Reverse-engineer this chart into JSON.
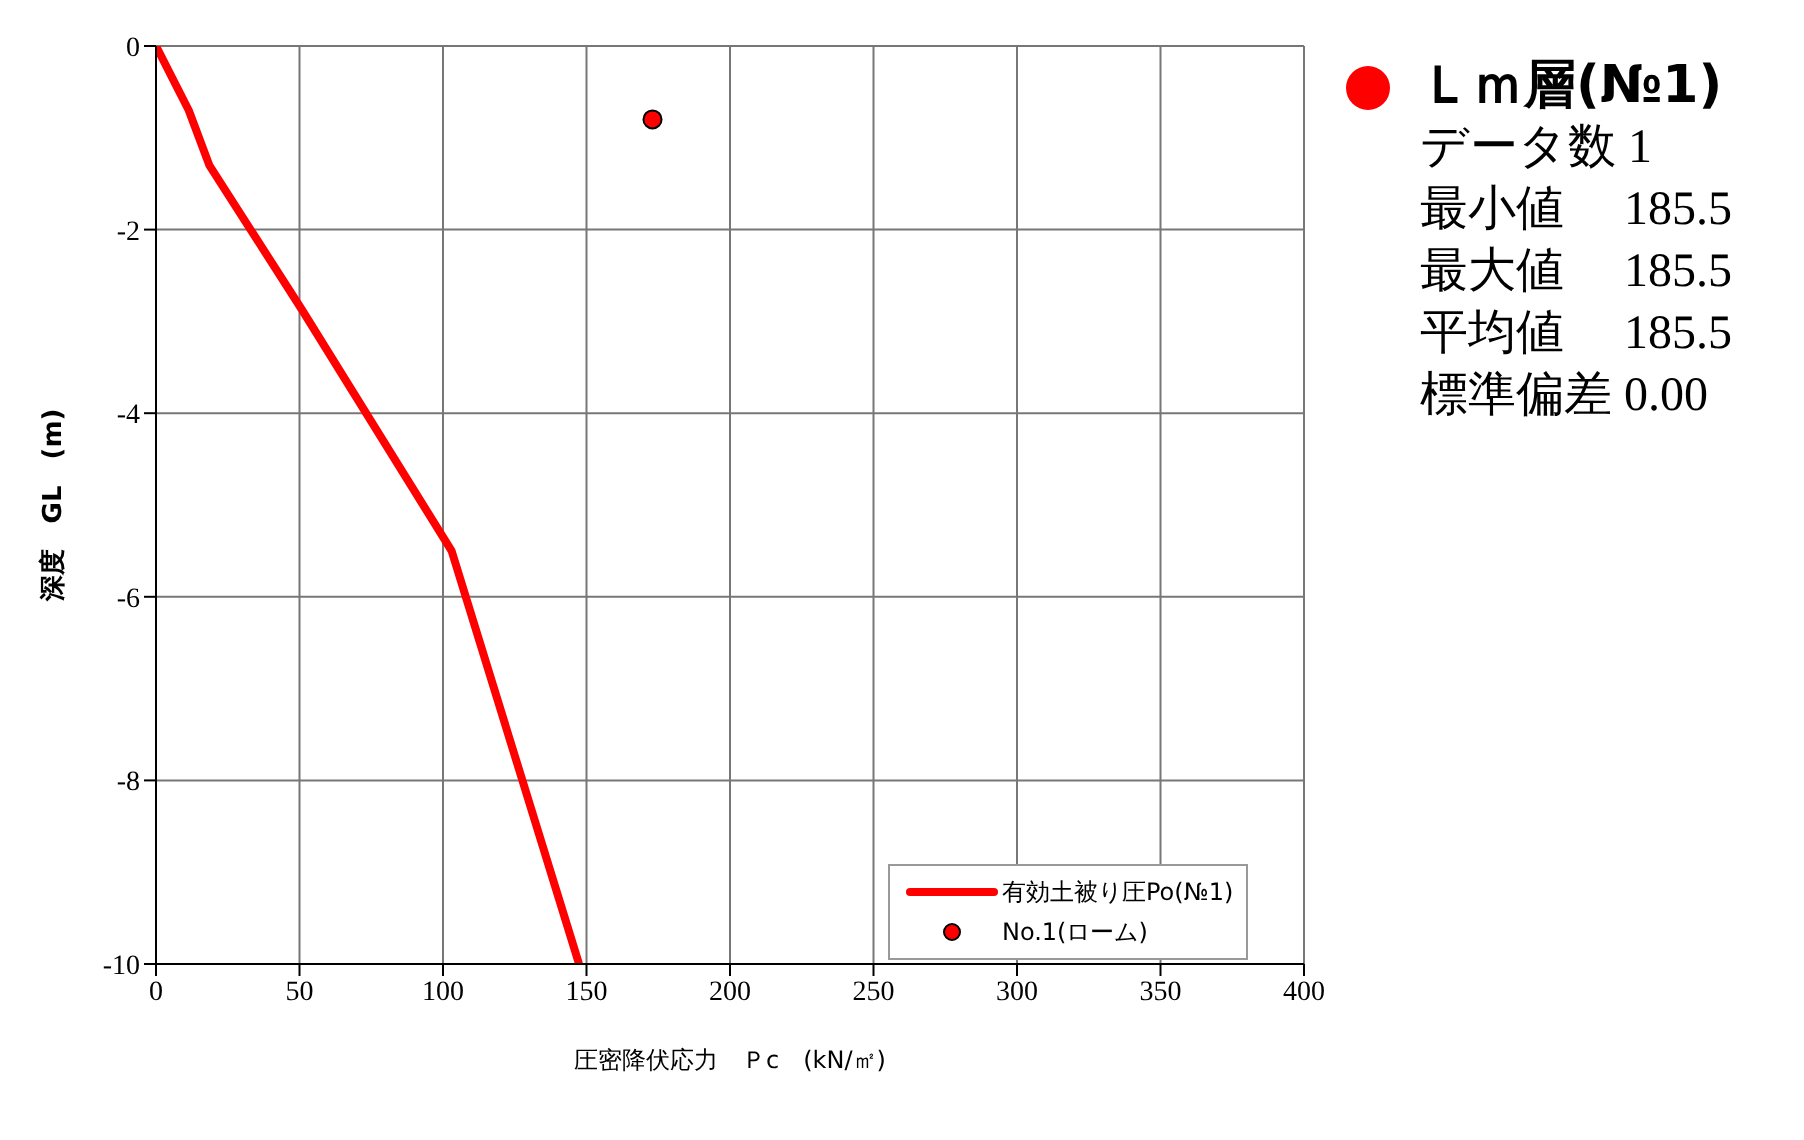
{
  "chart_data": {
    "type": "line",
    "xlabel": "圧密降伏応力　Ｐc　(kN/㎡)",
    "ylabel": "深度　GL　(m)",
    "xlim": [
      0,
      400
    ],
    "xticks": [
      0,
      50,
      100,
      150,
      200,
      250,
      300,
      350,
      400
    ],
    "ylim": [
      -10,
      0
    ],
    "yticks": [
      -10,
      -8,
      -6,
      -4,
      -2,
      0
    ],
    "grid": true,
    "legend": "bottom right",
    "line_style": "solid",
    "series": [
      {
        "name": "有効土被り圧Po(№1)",
        "marker": "none",
        "color": "#ff0000",
        "x": [
          0,
          11.4,
          18.6,
          50.8,
          103,
          147.4
        ],
        "values": [
          0,
          -0.7,
          -1.3,
          -2.87,
          -5.5,
          -10
        ]
      },
      {
        "name": "No.1(ローム)",
        "type": "scatter",
        "marker": "circle",
        "color": "#ff0000",
        "x": [
          173
        ],
        "values": [
          -0.8
        ]
      }
    ],
    "annotations": [
      "Ｌｍ層(№1)",
      "データ数 1",
      "最小値　 185.5",
      "最大値　 185.5",
      "平均値　 185.5",
      "標準偏差 0.00"
    ]
  }
}
